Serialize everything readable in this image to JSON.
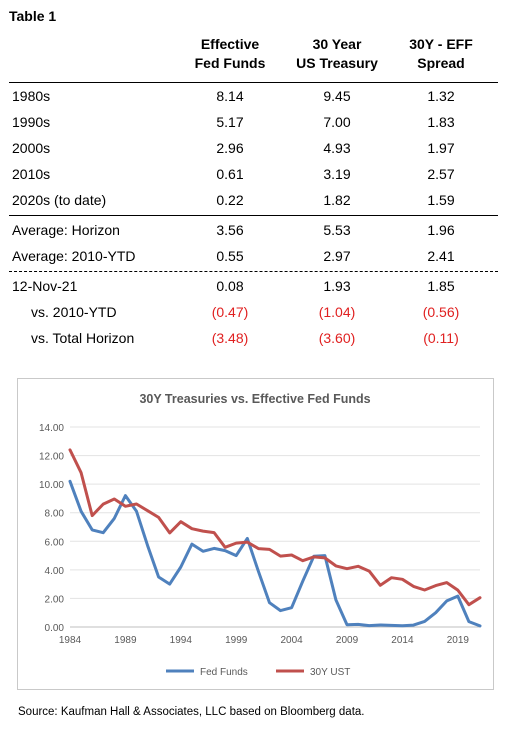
{
  "table": {
    "title": "Table 1",
    "columns": [
      {
        "line1": "Effective",
        "line2": "Fed Funds"
      },
      {
        "line1": "30 Year",
        "line2": "US Treasury"
      },
      {
        "line1": "30Y - EFF",
        "line2": "Spread"
      }
    ],
    "rows": [
      {
        "label": "1980s",
        "values": [
          "8.14",
          "9.45",
          "1.32"
        ]
      },
      {
        "label": "1990s",
        "values": [
          "5.17",
          "7.00",
          "1.83"
        ]
      },
      {
        "label": "2000s",
        "values": [
          "2.96",
          "4.93",
          "1.97"
        ]
      },
      {
        "label": "2010s",
        "values": [
          "0.61",
          "3.19",
          "2.57"
        ]
      },
      {
        "label": "2020s (to date)",
        "values": [
          "0.22",
          "1.82",
          "1.59"
        ]
      },
      {
        "label": "Average:  Horizon",
        "values": [
          "3.56",
          "5.53",
          "1.96"
        ]
      },
      {
        "label": "Average:  2010-YTD",
        "values": [
          "0.55",
          "2.97",
          "2.41"
        ]
      },
      {
        "label": "12-Nov-21",
        "values": [
          "0.08",
          "1.93",
          "1.85"
        ]
      },
      {
        "label": "vs. 2010-YTD",
        "values": [
          "(0.47)",
          "(1.04)",
          "(0.56)"
        ]
      },
      {
        "label": "vs. Total Horizon",
        "values": [
          "(3.48)",
          "(3.60)",
          "(0.11)"
        ]
      }
    ]
  },
  "chart_data": {
    "type": "line",
    "title": "30Y Treasuries vs. Effective Fed Funds",
    "xlabel": "",
    "ylabel": "",
    "ylim": [
      0,
      14
    ],
    "yticks": [
      "0.00",
      "2.00",
      "4.00",
      "6.00",
      "8.00",
      "10.00",
      "12.00",
      "14.00"
    ],
    "xticks": [
      "1984",
      "1989",
      "1994",
      "1999",
      "2004",
      "2009",
      "2014",
      "2019"
    ],
    "x": [
      1984,
      1985,
      1986,
      1987,
      1988,
      1989,
      1990,
      1991,
      1992,
      1993,
      1994,
      1995,
      1996,
      1997,
      1998,
      1999,
      2000,
      2001,
      2002,
      2003,
      2004,
      2005,
      2006,
      2007,
      2008,
      2009,
      2010,
      2011,
      2012,
      2013,
      2014,
      2015,
      2016,
      2017,
      2018,
      2019,
      2020,
      2021
    ],
    "series": [
      {
        "name": "Fed Funds",
        "color": "#4f81bd",
        "values": [
          10.2,
          8.1,
          6.8,
          6.6,
          7.6,
          9.2,
          8.1,
          5.7,
          3.5,
          3.0,
          4.2,
          5.8,
          5.3,
          5.5,
          5.35,
          5.0,
          6.2,
          3.9,
          1.7,
          1.15,
          1.35,
          3.2,
          4.95,
          5.0,
          1.9,
          0.16,
          0.18,
          0.1,
          0.14,
          0.11,
          0.09,
          0.13,
          0.39,
          1.0,
          1.83,
          2.16,
          0.38,
          0.08
        ]
      },
      {
        "name": "30Y UST",
        "color": "#c0504d",
        "values": [
          12.4,
          10.8,
          7.8,
          8.6,
          8.96,
          8.45,
          8.61,
          8.14,
          7.67,
          6.59,
          7.37,
          6.88,
          6.71,
          6.61,
          5.58,
          5.87,
          5.94,
          5.49,
          5.43,
          4.96,
          5.04,
          4.64,
          4.91,
          4.84,
          4.28,
          4.08,
          4.25,
          3.91,
          2.92,
          3.45,
          3.34,
          2.84,
          2.59,
          2.9,
          3.11,
          2.58,
          1.56,
          2.05
        ]
      }
    ],
    "legend_position": "bottom"
  },
  "source": "Source: Kaufman Hall & Associates, LLC based on Bloomberg data."
}
